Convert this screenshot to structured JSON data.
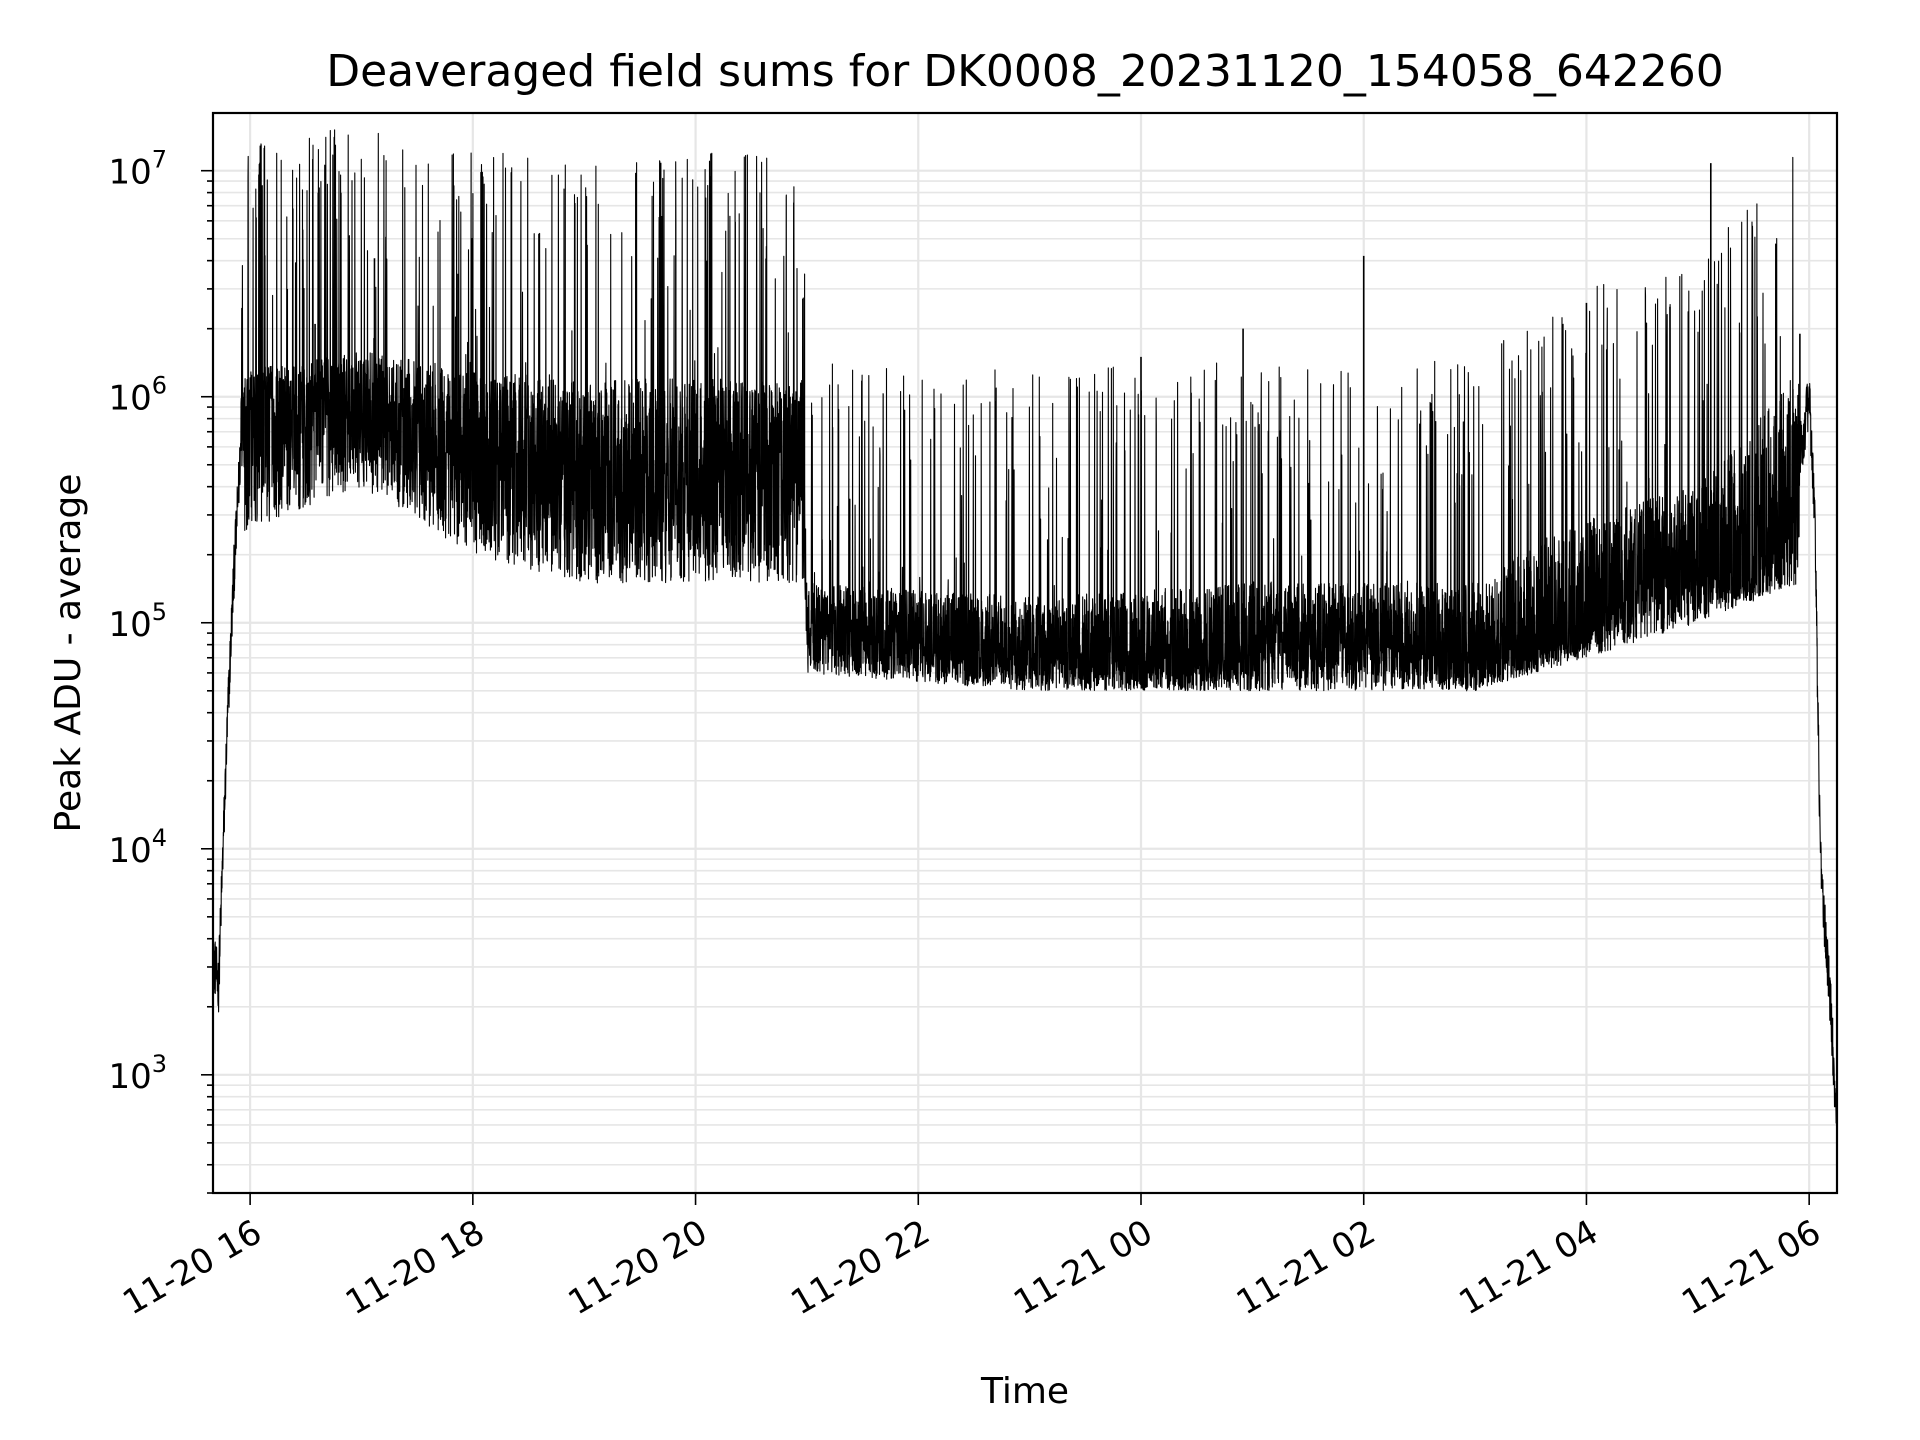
{
  "chart_data": {
    "type": "line",
    "title": "Deaveraged field sums for DK0008_20231120_154058_642260",
    "xlabel": "Time",
    "ylabel": "Peak ADU - average",
    "y_scale": "log",
    "grid": true,
    "legend": "none",
    "xlim": [
      "2023-11-20 15:40",
      "2023-11-21 06:15"
    ],
    "ylim": [
      300,
      18000000
    ],
    "x_tick_labels": [
      "11-20 16",
      "11-20 18",
      "11-20 20",
      "11-20 22",
      "11-21 00",
      "11-21 02",
      "11-21 04",
      "11-21 06"
    ],
    "x_ticks": [
      "2023-11-20 16:00",
      "2023-11-20 18:00",
      "2023-11-20 20:00",
      "2023-11-20 22:00",
      "2023-11-21 00:00",
      "2023-11-21 02:00",
      "2023-11-21 04:00",
      "2023-11-21 06:00"
    ],
    "y_ticks": [
      1000,
      10000,
      100000,
      1000000,
      10000000
    ],
    "y_tick_labels": [
      {
        "base": "10",
        "exp": "3"
      },
      {
        "base": "10",
        "exp": "4"
      },
      {
        "base": "10",
        "exp": "5"
      },
      {
        "base": "10",
        "exp": "6"
      },
      {
        "base": "10",
        "exp": "7"
      }
    ],
    "series": [
      {
        "line_color": "#000000",
        "baseline": {
          "x": [
            "2023-11-20 15:41",
            "2023-11-20 15:43",
            "2023-11-20 15:45",
            "2023-11-20 15:48",
            "2023-11-20 15:51",
            "2023-11-20 15:55",
            "2023-11-20 16:00",
            "2023-11-20 16:30",
            "2023-11-20 17:00",
            "2023-11-20 17:30",
            "2023-11-20 18:00",
            "2023-11-20 18:30",
            "2023-11-20 19:00",
            "2023-11-20 19:30",
            "2023-11-20 20:00",
            "2023-11-20 20:30",
            "2023-11-20 20:58",
            "2023-11-20 21:00",
            "2023-11-20 21:30",
            "2023-11-20 22:00",
            "2023-11-20 22:30",
            "2023-11-20 23:00",
            "2023-11-20 23:30",
            "2023-11-21 00:00",
            "2023-11-21 00:30",
            "2023-11-21 01:00",
            "2023-11-21 01:30",
            "2023-11-21 02:00",
            "2023-11-21 02:30",
            "2023-11-21 03:00",
            "2023-11-21 03:30",
            "2023-11-21 04:00",
            "2023-11-21 04:30",
            "2023-11-21 05:00",
            "2023-11-21 05:30",
            "2023-11-21 05:50",
            "2023-11-21 06:00",
            "2023-11-21 06:03",
            "2023-11-21 06:06",
            "2023-11-21 06:08",
            "2023-11-21 06:10",
            "2023-11-21 06:12",
            "2023-11-21 06:14"
          ],
          "y": [
            3000,
            2500,
            8000,
            40000,
            150000,
            600000,
            800000,
            900000,
            900000,
            700000,
            600000,
            500000,
            500000,
            400000,
            450000,
            500000,
            500000,
            100000,
            90000,
            80000,
            70000,
            75000,
            65000,
            70000,
            65000,
            75000,
            90000,
            80000,
            75000,
            70000,
            75000,
            90000,
            150000,
            200000,
            150000,
            300000,
            1000000,
            300000,
            10000,
            5000,
            3000,
            1800,
            800
          ]
        },
        "spread": {
          "x": [
            "2023-11-20 15:55",
            "2023-11-20 17:00",
            "2023-11-20 18:00",
            "2023-11-20 19:00",
            "2023-11-20 20:00",
            "2023-11-20 20:58",
            "2023-11-20 21:00",
            "2023-11-20 23:00",
            "2023-11-21 01:00",
            "2023-11-21 03:00",
            "2023-11-21 04:00",
            "2023-11-21 05:00",
            "2023-11-21 05:55"
          ],
          "low": [
            250000,
            400000,
            200000,
            150000,
            150000,
            150000,
            60000,
            50000,
            50000,
            50000,
            70000,
            100000,
            150000
          ],
          "high": [
            1300000,
            1600000,
            1300000,
            1200000,
            1200000,
            1200000,
            150000,
            130000,
            150000,
            150000,
            300000,
            400000,
            1300000
          ]
        },
        "peaks": [
          {
            "x": "2023-11-20 16:20",
            "y": 3000000
          },
          {
            "x": "2023-11-20 16:23",
            "y": 6800000
          },
          {
            "x": "2023-11-20 16:35",
            "y": 2100000
          },
          {
            "x": "2023-11-20 17:07",
            "y": 4100000
          },
          {
            "x": "2023-11-20 17:52",
            "y": 3500000
          },
          {
            "x": "2023-11-20 18:05",
            "y": 3300000
          },
          {
            "x": "2023-11-20 19:42",
            "y": 6300000
          },
          {
            "x": "2023-11-20 20:06",
            "y": 4000000
          },
          {
            "x": "2023-11-21 00:00",
            "y": 1500000
          },
          {
            "x": "2023-11-21 00:55",
            "y": 2000000
          },
          {
            "x": "2023-11-21 02:00",
            "y": 4200000
          },
          {
            "x": "2023-11-21 04:00",
            "y": 2600000
          },
          {
            "x": "2023-11-21 04:45",
            "y": 2500000
          },
          {
            "x": "2023-11-21 05:07",
            "y": 10800000
          },
          {
            "x": "2023-11-21 05:55",
            "y": 1900000
          }
        ]
      }
    ]
  }
}
